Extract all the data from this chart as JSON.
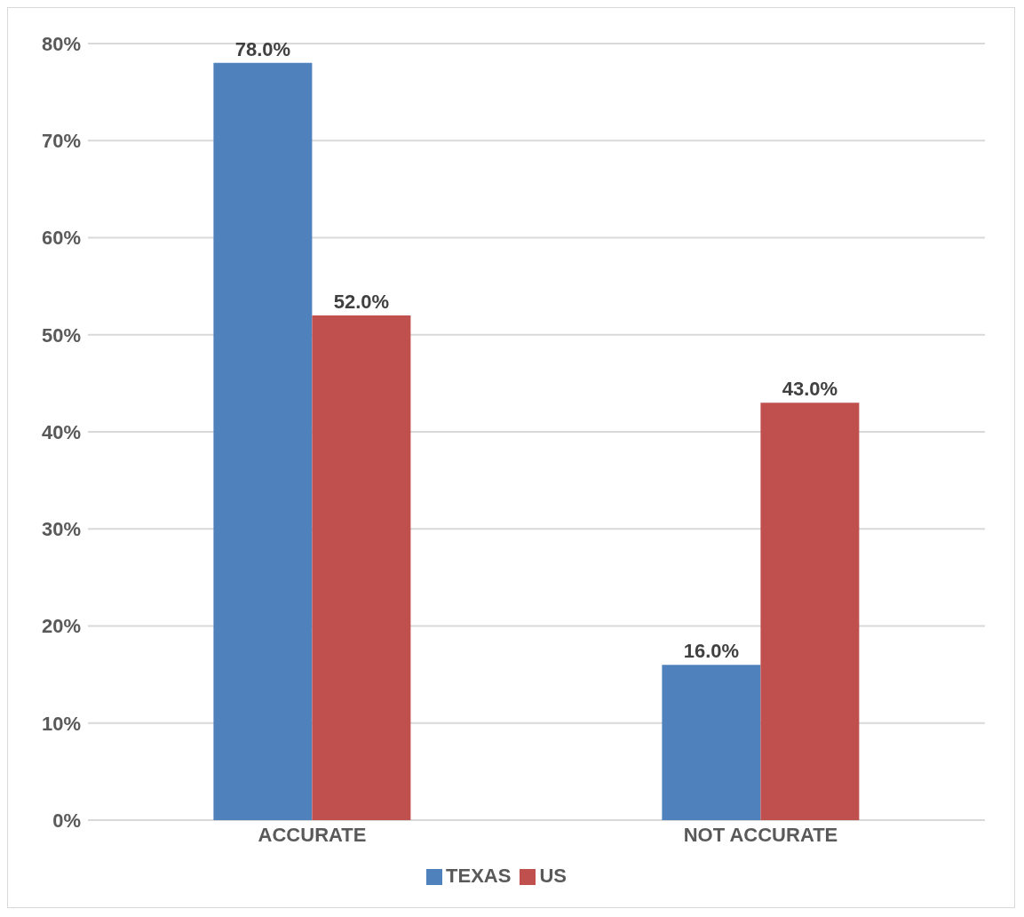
{
  "chart_data": {
    "type": "bar",
    "categories": [
      "ACCURATE",
      "NOT ACCURATE"
    ],
    "series": [
      {
        "name": "TEXAS",
        "color": "#4f81bd",
        "values": [
          78,
          16
        ],
        "value_labels": [
          "78.0%",
          "16.0%"
        ]
      },
      {
        "name": "US",
        "color": "#c0504d",
        "values": [
          52,
          43
        ],
        "value_labels": [
          "52.0%",
          "43.0%"
        ]
      }
    ],
    "ylim": [
      0,
      80
    ],
    "yticks": [
      {
        "value": 0,
        "label": "0%"
      },
      {
        "value": 10,
        "label": "10%"
      },
      {
        "value": 20,
        "label": "20%"
      },
      {
        "value": 30,
        "label": "30%"
      },
      {
        "value": 40,
        "label": "40%"
      },
      {
        "value": 50,
        "label": "50%"
      },
      {
        "value": 60,
        "label": "60%"
      },
      {
        "value": 70,
        "label": "70%"
      },
      {
        "value": 80,
        "label": "80%"
      }
    ],
    "grid": "y",
    "legend": "bottom"
  }
}
